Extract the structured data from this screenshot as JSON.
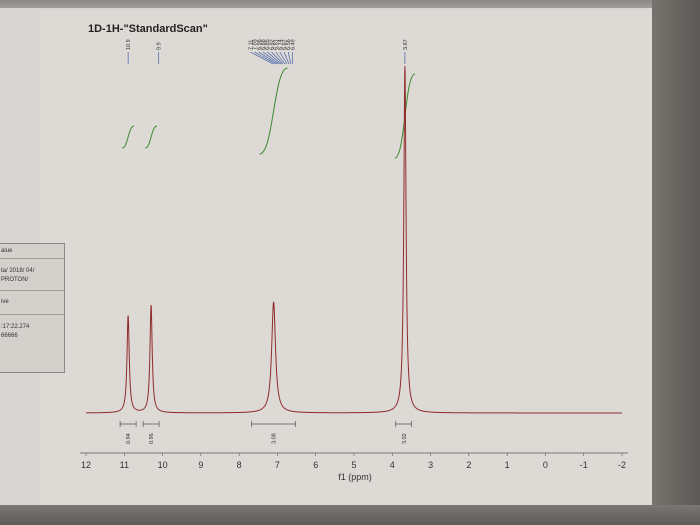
{
  "spectrum": {
    "title": "1D-1H-\"StandardScan\"",
    "xaxis_label": "f1 (ppm)",
    "ticks": [
      "12",
      "11",
      "10",
      "9",
      "8",
      "7",
      "6",
      "5",
      "4",
      "3",
      "2",
      "1",
      "0",
      "-1",
      "-2"
    ],
    "peak_labels": [
      {
        "ppm": 10.9,
        "text": "10.9"
      },
      {
        "ppm": 10.1,
        "text": "9.9"
      },
      {
        "ppm": 7.11,
        "text": "7.11"
      },
      {
        "ppm": 7.05,
        "text": "7.03"
      },
      {
        "ppm": 7.0,
        "text": "6.96"
      },
      {
        "ppm": 6.95,
        "text": "6.88"
      },
      {
        "ppm": 6.9,
        "text": "6.85"
      },
      {
        "ppm": 6.85,
        "text": "6.82"
      },
      {
        "ppm": 6.8,
        "text": "6.81"
      },
      {
        "ppm": 6.75,
        "text": "6.74"
      },
      {
        "ppm": 6.7,
        "text": "6.67"
      },
      {
        "ppm": 6.65,
        "text": "6.56"
      },
      {
        "ppm": 6.6,
        "text": "6.49"
      },
      {
        "ppm": 3.67,
        "text": "3.67"
      }
    ],
    "integrals": [
      {
        "ppm": 10.9,
        "text": "0.94"
      },
      {
        "ppm": 10.3,
        "text": "0.96"
      },
      {
        "ppm": 7.1,
        "text": "3.08"
      },
      {
        "ppm": 3.7,
        "text": "3.02"
      }
    ]
  },
  "info_panel": {
    "row1": "alue",
    "row2": "ta/ 2018/ 04/",
    "row3": "PROTON/",
    "row4": "ive",
    "row5": ":17:22.274",
    "row6": "66666"
  },
  "chart_data": {
    "type": "line",
    "title": "1D-1H-\"StandardScan\"",
    "xlabel": "f1 (ppm)",
    "ylabel": "",
    "xlim": [
      12,
      -2
    ],
    "peaks": [
      {
        "x": 10.9,
        "height": 0.28
      },
      {
        "x": 10.3,
        "height": 0.31
      },
      {
        "x": 7.1,
        "height": 0.32
      },
      {
        "x": 3.67,
        "height": 1.0
      }
    ],
    "integrals": [
      0.94,
      0.96,
      3.08,
      3.02
    ]
  },
  "colors": {
    "trace": "#8e2b2b",
    "integral": "#3a8a2f",
    "label_blue": "#2f4fa0"
  }
}
